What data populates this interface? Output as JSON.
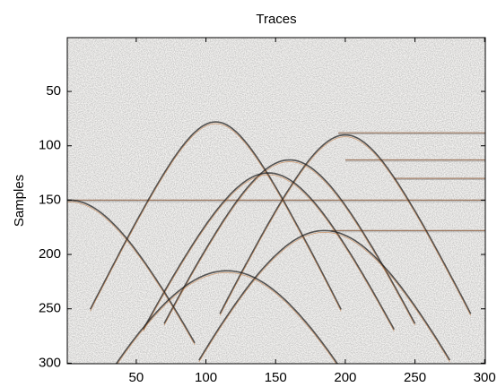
{
  "chart_data": {
    "type": "image",
    "title": "Traces",
    "ylabel": "Samples",
    "xlim": [
      0.5,
      300.5
    ],
    "ylim": [
      0.5,
      300.5
    ],
    "y_reversed": true,
    "xticks": [
      50,
      100,
      150,
      200,
      250,
      300
    ],
    "yticks": [
      50,
      100,
      150,
      200,
      250,
      300
    ],
    "events": [
      {
        "x": 107,
        "y": 78
      },
      {
        "x": 200,
        "y": 90
      },
      {
        "x": 160,
        "y": 113
      },
      {
        "x": 145,
        "y": 125
      },
      {
        "x": 185,
        "y": 178
      },
      {
        "x": 2,
        "y": 150
      },
      {
        "x": 115,
        "y": 215
      }
    ],
    "reflectors": [
      {
        "x": 1,
        "y": 150
      },
      {
        "x": 195,
        "y": 88
      },
      {
        "x": 200,
        "y": 113
      },
      {
        "x": 190,
        "y": 178
      },
      {
        "x": 235,
        "y": 130
      }
    ]
  }
}
